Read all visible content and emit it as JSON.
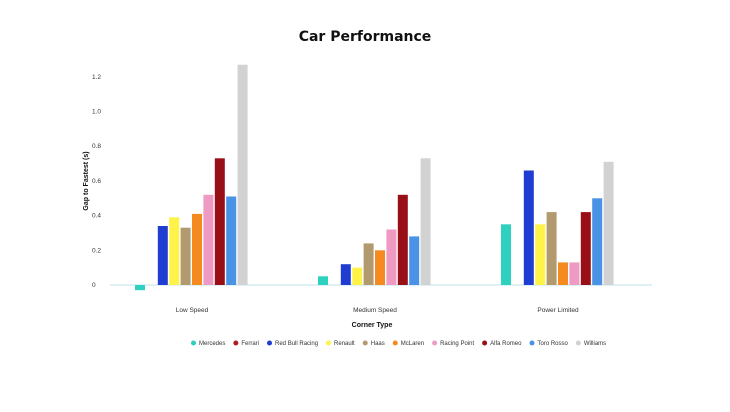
{
  "chart_data": {
    "type": "bar",
    "title": "Car Performance",
    "xlabel": "Corner Type",
    "ylabel": "Gap to Fastest (s)",
    "categories": [
      "Low Speed",
      "Medium Speed",
      "Power Limited"
    ],
    "y_ticks": [
      "0",
      "0.2",
      "0.4",
      "0.6",
      "0.8",
      "1.0",
      "1.2"
    ],
    "ylim": [
      -0.05,
      1.3
    ],
    "grid": false,
    "legend_position": "bottom",
    "series": [
      {
        "name": "Mercedes",
        "color": "#2ed1c0",
        "values": [
          -0.03,
          0.05,
          0.35
        ]
      },
      {
        "name": "Ferrari",
        "color": "#b01c25",
        "values": [
          null,
          null,
          null
        ]
      },
      {
        "name": "Red Bull Racing",
        "color": "#1f3ed1",
        "values": [
          0.34,
          0.12,
          0.66
        ]
      },
      {
        "name": "Renault",
        "color": "#fff34a",
        "values": [
          0.39,
          0.1,
          0.35
        ]
      },
      {
        "name": "Haas",
        "color": "#b39a6e",
        "values": [
          0.33,
          0.24,
          0.42
        ]
      },
      {
        "name": "McLaren",
        "color": "#f58a21",
        "values": [
          0.41,
          0.2,
          0.13
        ]
      },
      {
        "name": "Racing Point",
        "color": "#ef9ac3",
        "values": [
          0.52,
          0.32,
          0.13
        ]
      },
      {
        "name": "Alfa Romeo",
        "color": "#980f17",
        "values": [
          0.73,
          0.52,
          0.42
        ]
      },
      {
        "name": "Toro Rosso",
        "color": "#4a92e6",
        "values": [
          0.51,
          0.28,
          0.5
        ]
      },
      {
        "name": "Williams",
        "color": "#d2d2d2",
        "values": [
          1.27,
          0.73,
          0.71
        ]
      }
    ]
  }
}
